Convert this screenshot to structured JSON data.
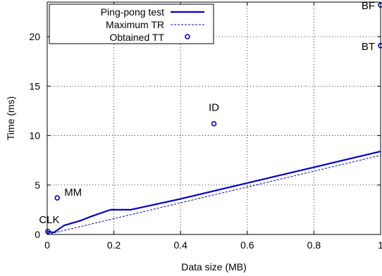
{
  "chart_data": {
    "type": "line",
    "xlabel": "Data size (MB)",
    "ylabel": "Time (ms)",
    "xlim": [
      0,
      1
    ],
    "ylim": [
      0,
      23.5
    ],
    "grid": true,
    "legend_position": "top-left",
    "x_ticks": [
      0,
      0.2,
      0.4,
      0.6,
      0.8,
      1
    ],
    "y_ticks": [
      0,
      5,
      10,
      15,
      20
    ],
    "x_tick_labels": [
      "0",
      "0.2",
      "0.4",
      "0.6",
      "0.8",
      "1"
    ],
    "y_tick_labels": [
      "0",
      "5",
      "10",
      "15",
      "20"
    ],
    "colors": {
      "series": "#0000cc",
      "axis": "#000000"
    },
    "series": [
      {
        "name": "Ping-pong test",
        "style": "solid",
        "x": [
          0,
          0.02,
          0.05,
          0.1,
          0.13,
          0.19,
          0.25,
          0.4,
          0.6,
          0.8,
          1.0
        ],
        "y": [
          0.3,
          0.2,
          0.9,
          1.4,
          1.8,
          2.5,
          2.5,
          3.6,
          5.2,
          6.8,
          8.4
        ]
      },
      {
        "name": "Maximum TR",
        "style": "dashed",
        "x": [
          0,
          1.0
        ],
        "y": [
          0,
          8.0
        ]
      },
      {
        "name": "Obtained TT",
        "style": "points",
        "points": [
          {
            "label": "CLK",
            "x": 0.002,
            "y": 0.3
          },
          {
            "label": "MM",
            "x": 0.03,
            "y": 3.7
          },
          {
            "label": "ID",
            "x": 0.5,
            "y": 11.2
          },
          {
            "label": "BT",
            "x": 1.0,
            "y": 19.1
          },
          {
            "label": "BF",
            "x": 1.0,
            "y": 23.2
          }
        ]
      }
    ]
  }
}
